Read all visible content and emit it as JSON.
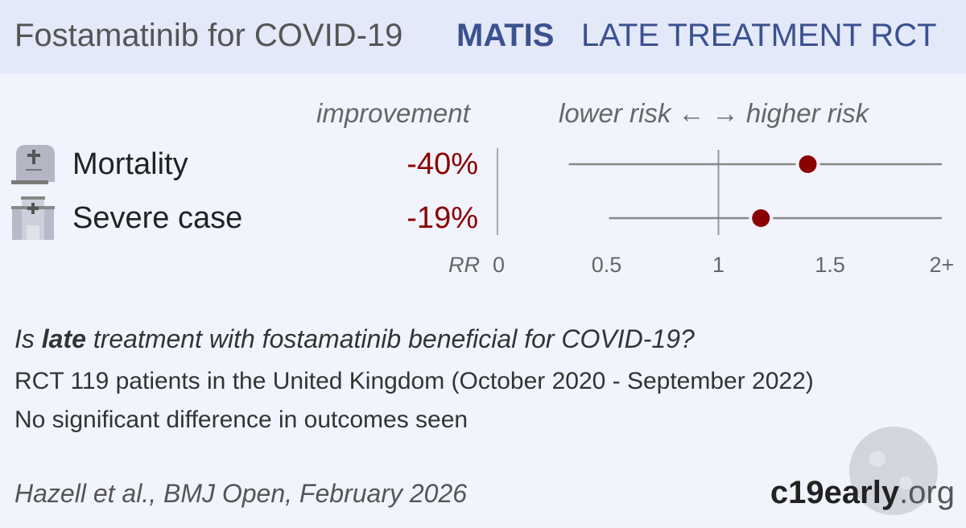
{
  "header": {
    "title": "Fostamatinib for COVID-19",
    "trial": "MATIS",
    "type": "LATE TREATMENT RCT"
  },
  "columns": {
    "improvement": "improvement",
    "risk": "lower risk ← → higher risk"
  },
  "chart_data": {
    "type": "forest",
    "xlabel": "RR",
    "xlim": [
      0,
      2
    ],
    "ticks": [
      "0",
      "0.5",
      "1",
      "1.5",
      "2+"
    ],
    "tick_values": [
      0,
      0.5,
      1,
      1.5,
      2
    ],
    "reference_line": 1,
    "colors": {
      "point": "#8b0000",
      "line": "#888888"
    },
    "rows": [
      {
        "label": "Mortality",
        "icon": "gravestone-icon",
        "improvement": "-40%",
        "rr": 1.4,
        "ci_low": 0.33,
        "ci_high": 2
      },
      {
        "label": "Severe case",
        "icon": "hospital-icon",
        "improvement": "-19%",
        "rr": 1.19,
        "ci_low": 0.51,
        "ci_high": 2
      }
    ]
  },
  "question": {
    "pre": "Is ",
    "bold": "late",
    "post": " treatment with fostamatinib beneficial for COVID-19?"
  },
  "details": [
    "RCT 119 patients in the United Kingdom (October 2020 - September 2022)",
    "No significant difference in outcomes seen"
  ],
  "citation": "Hazell et al., BMJ Open, February 2026",
  "brand": {
    "bold": "c19early",
    "rest": ".org"
  }
}
